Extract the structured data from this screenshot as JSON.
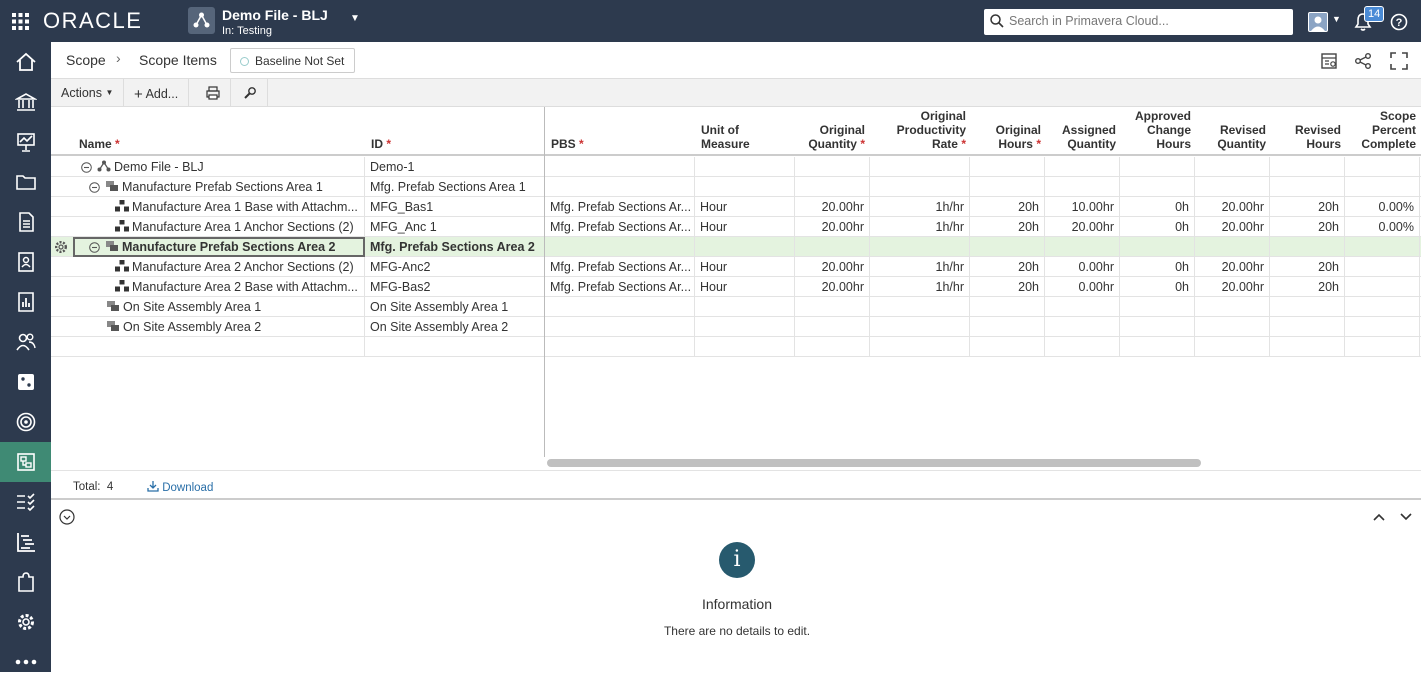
{
  "topbar": {
    "logo": "ORACLE",
    "project_title": "Demo File - BLJ",
    "project_subtitle": "In: Testing",
    "search_placeholder": "Search in Primavera Cloud...",
    "notification_count": "14"
  },
  "breadcrumb": {
    "items": [
      "Scope",
      "Scope Items"
    ],
    "baseline": "Baseline Not Set"
  },
  "toolbar": {
    "actions": "Actions",
    "add": "Add..."
  },
  "columns": {
    "name": "Name",
    "id": "ID",
    "pbs": "PBS",
    "unit": [
      "Unit of",
      "Measure"
    ],
    "oq": [
      "Original",
      "Quantity"
    ],
    "opr": [
      "Original",
      "Productivity",
      "Rate"
    ],
    "oh": [
      "Original",
      "Hours"
    ],
    "aq": [
      "Assigned",
      "Quantity"
    ],
    "ach": [
      "Approved",
      "Change",
      "Hours"
    ],
    "rq": [
      "Revised",
      "Quantity"
    ],
    "rh": [
      "Revised",
      "Hours"
    ],
    "spc": [
      "Scope",
      "Percent",
      "Complete"
    ]
  },
  "rows": [
    {
      "name": "Demo File - BLJ",
      "id": "Demo-1",
      "pbs": "",
      "unit": "",
      "oq": "",
      "opr": "",
      "oh": "",
      "aq": "",
      "ach": "",
      "rq": "",
      "rh": "",
      "spc": ""
    },
    {
      "name": "Manufacture Prefab Sections Area 1",
      "id": "Mfg. Prefab Sections Area 1",
      "pbs": "",
      "unit": "",
      "oq": "",
      "opr": "",
      "oh": "",
      "aq": "",
      "ach": "",
      "rq": "",
      "rh": "",
      "spc": ""
    },
    {
      "name": "Manufacture Area 1 Base with Attachm...",
      "id": "MFG_Bas1",
      "pbs": "Mfg. Prefab Sections Ar...",
      "unit": "Hour",
      "oq": "20.00hr",
      "opr": "1h/hr",
      "oh": "20h",
      "aq": "10.00hr",
      "ach": "0h",
      "rq": "20.00hr",
      "rh": "20h",
      "spc": "0.00%"
    },
    {
      "name": "Manufacture Area 1 Anchor Sections (2)",
      "id": "MFG_Anc 1",
      "pbs": "Mfg. Prefab Sections Ar...",
      "unit": "Hour",
      "oq": "20.00hr",
      "opr": "1h/hr",
      "oh": "20h",
      "aq": "20.00hr",
      "ach": "0h",
      "rq": "20.00hr",
      "rh": "20h",
      "spc": "0.00%"
    },
    {
      "name": "Manufacture Prefab Sections Area 2",
      "id": "Mfg. Prefab Sections Area 2",
      "pbs": "",
      "unit": "",
      "oq": "",
      "opr": "",
      "oh": "",
      "aq": "",
      "ach": "",
      "rq": "",
      "rh": "",
      "spc": ""
    },
    {
      "name": "Manufacture Area 2 Anchor Sections (2)",
      "id": "MFG-Anc2",
      "pbs": "Mfg. Prefab Sections Ar...",
      "unit": "Hour",
      "oq": "20.00hr",
      "opr": "1h/hr",
      "oh": "20h",
      "aq": "0.00hr",
      "ach": "0h",
      "rq": "20.00hr",
      "rh": "20h",
      "spc": ""
    },
    {
      "name": "Manufacture Area 2 Base with Attachm...",
      "id": "MFG-Bas2",
      "pbs": "Mfg. Prefab Sections Ar...",
      "unit": "Hour",
      "oq": "20.00hr",
      "opr": "1h/hr",
      "oh": "20h",
      "aq": "0.00hr",
      "ach": "0h",
      "rq": "20.00hr",
      "rh": "20h",
      "spc": ""
    },
    {
      "name": "On Site Assembly Area 1",
      "id": "On Site Assembly Area 1",
      "pbs": "",
      "unit": "",
      "oq": "",
      "opr": "",
      "oh": "",
      "aq": "",
      "ach": "",
      "rq": "",
      "rh": "",
      "spc": ""
    },
    {
      "name": "On Site Assembly Area 2",
      "id": "On Site Assembly Area 2",
      "pbs": "",
      "unit": "",
      "oq": "",
      "opr": "",
      "oh": "",
      "aq": "",
      "ach": "",
      "rq": "",
      "rh": "",
      "spc": ""
    },
    {
      "name": "",
      "id": "",
      "pbs": "",
      "unit": "",
      "oq": "",
      "opr": "",
      "oh": "",
      "aq": "",
      "ach": "",
      "rq": "",
      "rh": "",
      "spc": ""
    }
  ],
  "footer": {
    "total_label": "Total:",
    "total_value": "4",
    "download": "Download"
  },
  "details": {
    "title": "Information",
    "message": "There are no details to edit."
  }
}
